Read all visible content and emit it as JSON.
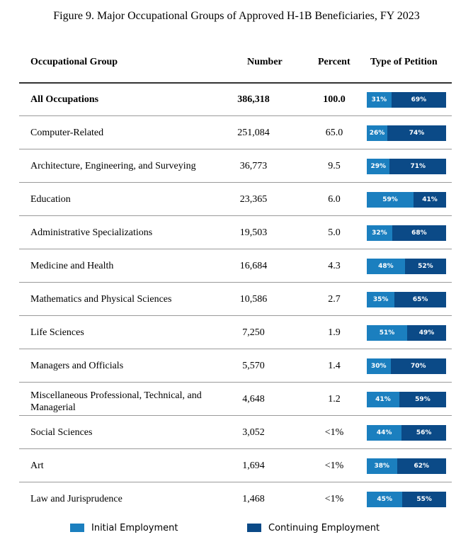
{
  "title": "Figure 9. Major Occupational Groups of Approved H-1B Beneficiaries, FY 2023",
  "headers": {
    "group": "Occupational Group",
    "number": "Number",
    "percent": "Percent",
    "type": "Type of Petition"
  },
  "colors": {
    "initial": "#1b7fbf",
    "continuing": "#0b4a87"
  },
  "legend": {
    "initial": "Initial Employment",
    "continuing": "Continuing Employment"
  },
  "chart_data": {
    "type": "table",
    "title": "Figure 9. Major Occupational Groups of Approved H-1B Beneficiaries, FY 2023",
    "columns": [
      "Occupational Group",
      "Number",
      "Percent",
      "Type of Petition"
    ],
    "legend_placement": "bottom",
    "series": [
      {
        "name": "Initial Employment"
      },
      {
        "name": "Continuing Employment"
      }
    ],
    "rows": [
      {
        "group": "All Occupations",
        "number": "386,318",
        "percent": "100.0",
        "initial": 31,
        "continuing": 69,
        "initial_label": "31%",
        "continuing_label": "69%",
        "bold": true
      },
      {
        "group": "Computer-Related",
        "number": "251,084",
        "percent": "65.0",
        "initial": 26,
        "continuing": 74,
        "initial_label": "26%",
        "continuing_label": "74%"
      },
      {
        "group": "Architecture, Engineering, and Surveying",
        "number": "36,773",
        "percent": "9.5",
        "initial": 29,
        "continuing": 71,
        "initial_label": "29%",
        "continuing_label": "71%"
      },
      {
        "group": "Education",
        "number": "23,365",
        "percent": "6.0",
        "initial": 59,
        "continuing": 41,
        "initial_label": "59%",
        "continuing_label": "41%"
      },
      {
        "group": "Administrative Specializations",
        "number": "19,503",
        "percent": "5.0",
        "initial": 32,
        "continuing": 68,
        "initial_label": "32%",
        "continuing_label": "68%"
      },
      {
        "group": "Medicine and Health",
        "number": "16,684",
        "percent": "4.3",
        "initial": 48,
        "continuing": 52,
        "initial_label": "48%",
        "continuing_label": "52%"
      },
      {
        "group": "Mathematics and Physical Sciences",
        "number": "10,586",
        "percent": "2.7",
        "initial": 35,
        "continuing": 65,
        "initial_label": "35%",
        "continuing_label": "65%"
      },
      {
        "group": "Life Sciences",
        "number": "7,250",
        "percent": "1.9",
        "initial": 51,
        "continuing": 49,
        "initial_label": "51%",
        "continuing_label": "49%"
      },
      {
        "group": "Managers and Officials",
        "number": "5,570",
        "percent": "1.4",
        "initial": 30,
        "continuing": 70,
        "initial_label": "30%",
        "continuing_label": "70%"
      },
      {
        "group": "Miscellaneous Professional, Technical, and Managerial",
        "number": "4,648",
        "percent": "1.2",
        "initial": 41,
        "continuing": 59,
        "initial_label": "41%",
        "continuing_label": "59%"
      },
      {
        "group": "Social Sciences",
        "number": "3,052",
        "percent": "<1%",
        "initial": 44,
        "continuing": 56,
        "initial_label": "44%",
        "continuing_label": "56%"
      },
      {
        "group": "Art",
        "number": "1,694",
        "percent": "<1%",
        "initial": 38,
        "continuing": 62,
        "initial_label": "38%",
        "continuing_label": "62%"
      },
      {
        "group": "Law and Jurisprudence",
        "number": "1,468",
        "percent": "<1%",
        "initial": 45,
        "continuing": 55,
        "initial_label": "45%",
        "continuing_label": "55%"
      }
    ]
  }
}
